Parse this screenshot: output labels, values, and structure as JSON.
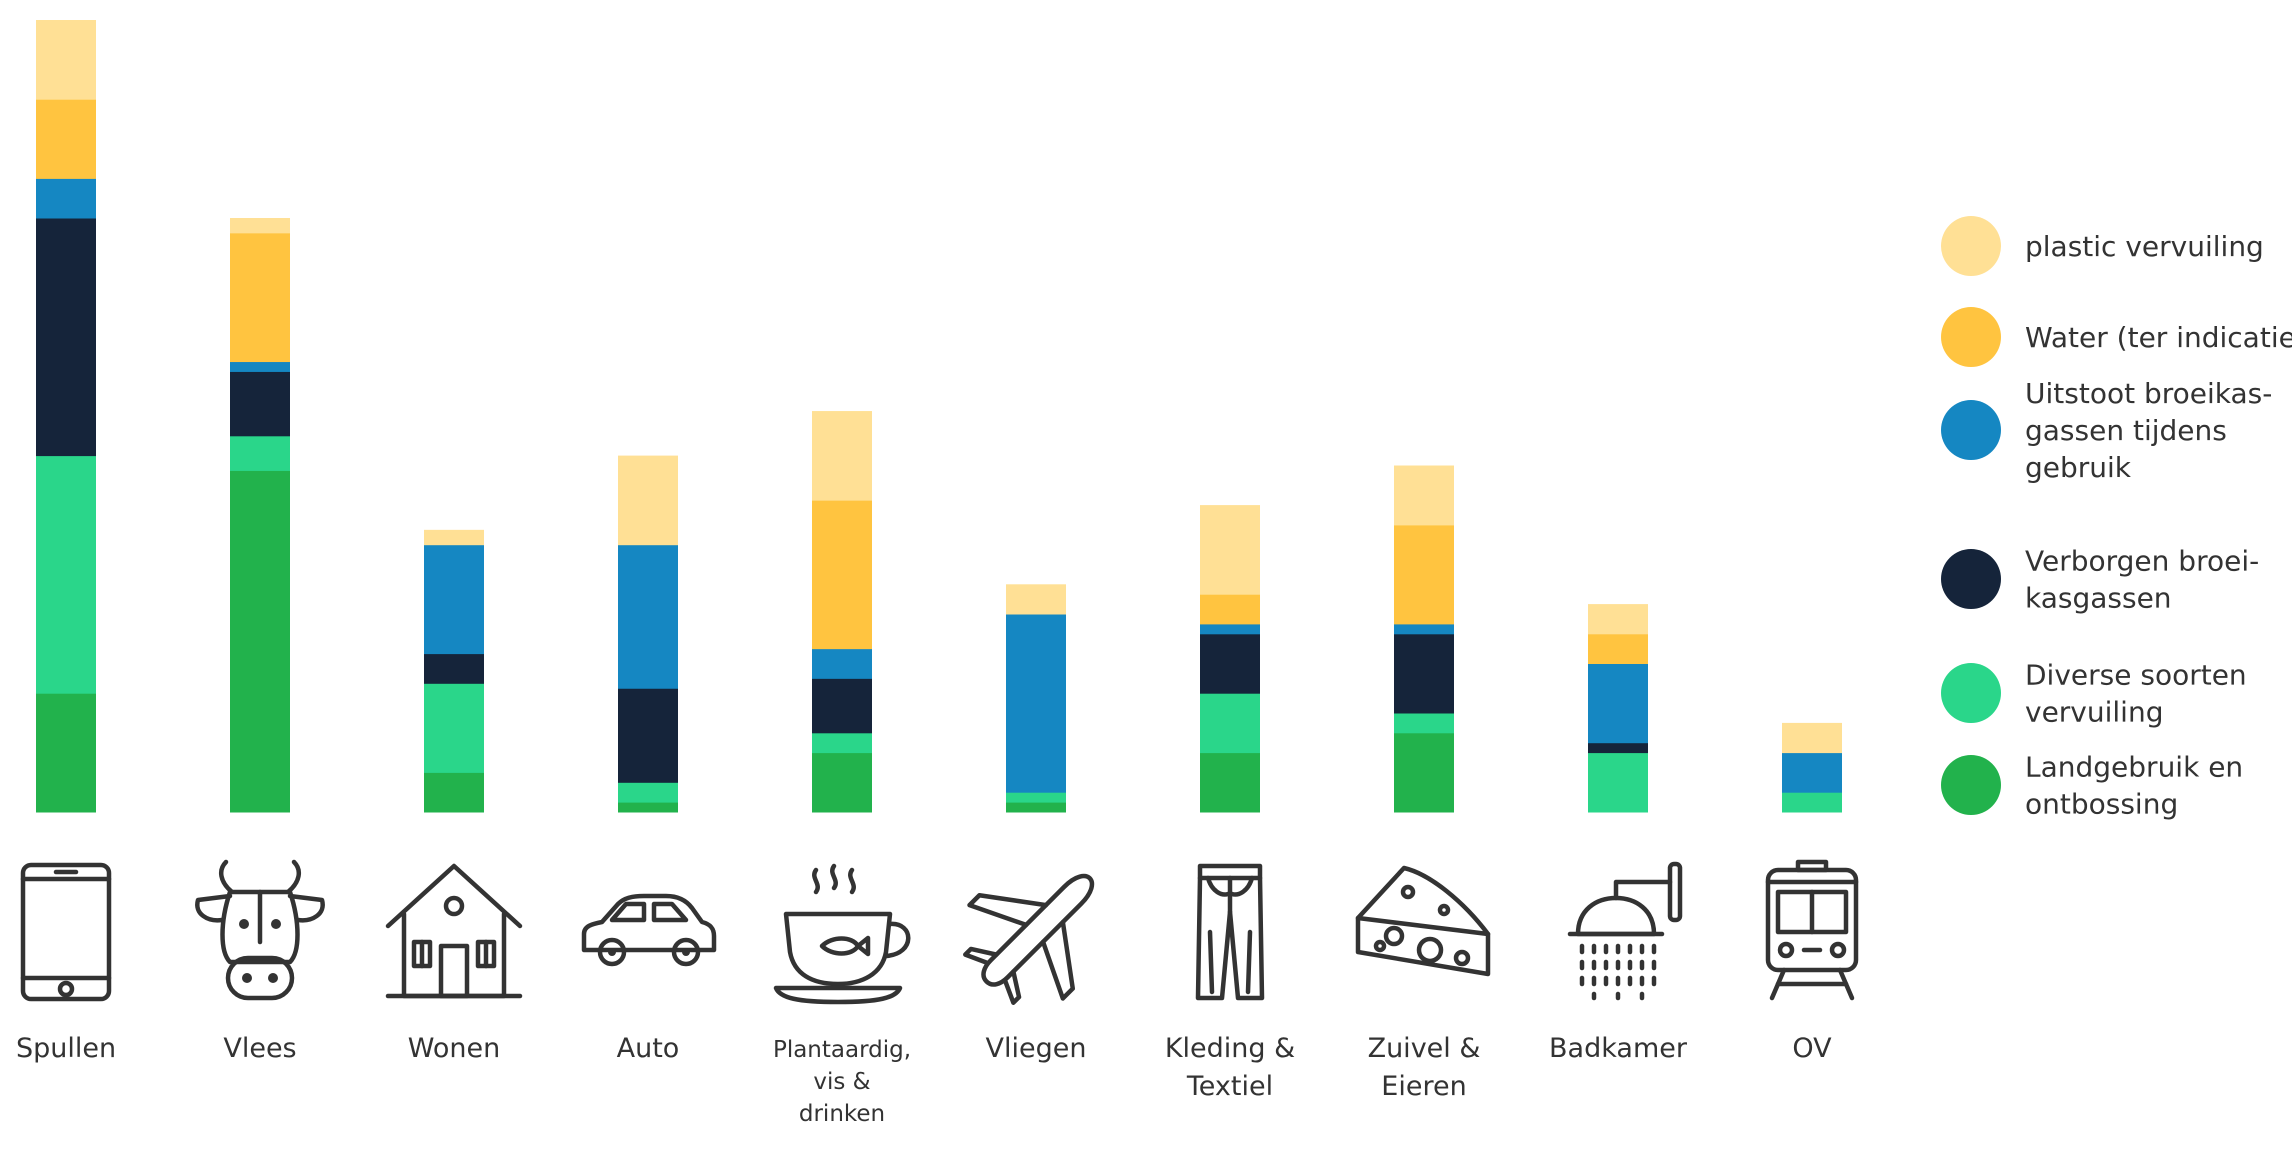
{
  "chart_data": {
    "type": "bar",
    "stacked": true,
    "categories": [
      "Spullen",
      "Vlees",
      "Wonen",
      "Auto",
      "Plantaardig, vis & drinken",
      "Vliegen",
      "Kleding & Textiel",
      "Zuivel & Eieren",
      "Badkamer",
      "OV"
    ],
    "category_lines": [
      [
        "Spullen"
      ],
      [
        "Vlees"
      ],
      [
        "Wonen"
      ],
      [
        "Auto"
      ],
      [
        "Plantaardig,",
        "vis &",
        "drinken"
      ],
      [
        "Vliegen"
      ],
      [
        "Kleding &",
        "Textiel"
      ],
      [
        "Zuivel &",
        "Eieren"
      ],
      [
        "Badkamer"
      ],
      [
        "OV"
      ]
    ],
    "icons": [
      "smartphone-icon",
      "cow-icon",
      "house-icon",
      "car-icon",
      "coffee-cup-icon",
      "airplane-icon",
      "trousers-icon",
      "cheese-icon",
      "shower-icon",
      "train-icon"
    ],
    "series": [
      {
        "name": "Landgebruik en ontbossing",
        "legend_lines": [
          "Landgebruik en",
          "ontbossing"
        ],
        "color": "#22b24c",
        "values": [
          12,
          34.5,
          4,
          1,
          6,
          1,
          6,
          8,
          0,
          0
        ]
      },
      {
        "name": "Diverse soorten vervuiling",
        "legend_lines": [
          "Diverse soorten",
          "vervuiling"
        ],
        "color": "#2ad68a",
        "values": [
          24,
          3.5,
          9,
          2,
          2,
          1,
          6,
          2,
          6,
          2
        ]
      },
      {
        "name": "Verborgen broeikasgassen",
        "legend_lines": [
          "Verborgen broei-",
          "kasgassen"
        ],
        "color": "#15243a",
        "values": [
          24,
          6.5,
          3,
          9.5,
          5.5,
          0,
          6,
          8,
          1,
          0
        ]
      },
      {
        "name": "Uitstoot broeikasgassen tijdens gebruik",
        "legend_lines": [
          "Uitstoot broeikas-",
          "gassen tijdens",
          "gebruik"
        ],
        "color": "#1587c2",
        "values": [
          4,
          1,
          11,
          14.5,
          3,
          18,
          1,
          1,
          8,
          4
        ]
      },
      {
        "name": "Water (ter indicatie)",
        "legend_lines": [
          "Water (ter indicatie)"
        ],
        "color": "#ffc440",
        "values": [
          8,
          13,
          0,
          0,
          15,
          0,
          3,
          10,
          3,
          0
        ]
      },
      {
        "name": "plastic vervuiling",
        "legend_lines": [
          "plastic vervuiling"
        ],
        "color": "#ffe095",
        "values": [
          8,
          1.5,
          1.5,
          9,
          9,
          3,
          9,
          6,
          3,
          3
        ]
      }
    ],
    "legend_order": [
      "plastic vervuiling",
      "Water (ter indicatie)",
      "Uitstoot broeikasgassen tijdens gebruik",
      "Verborgen broeikasgassen",
      "Diverse soorten vervuiling",
      "Landgebruik en ontbossing"
    ],
    "ylim": [
      0,
      80
    ],
    "legend_position": "right",
    "grid": false,
    "axes_visible": false
  }
}
